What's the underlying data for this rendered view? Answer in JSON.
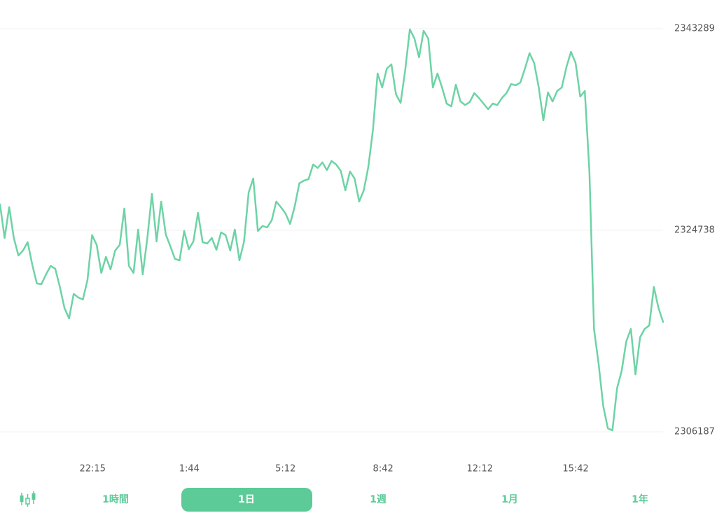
{
  "chart_data": {
    "type": "line",
    "x": [
      0,
      10,
      20,
      30,
      40,
      50,
      60,
      70,
      80,
      90,
      100,
      110,
      120,
      130,
      140,
      150,
      160,
      170,
      180,
      190,
      200,
      210,
      220,
      230,
      240,
      250,
      260,
      270,
      280,
      290,
      300,
      310,
      320,
      330,
      340,
      350,
      360,
      370,
      380,
      390,
      400,
      410,
      420,
      430,
      440,
      450,
      460,
      470,
      480,
      490,
      500,
      510,
      520,
      530,
      540,
      550,
      560,
      570,
      580,
      590,
      600,
      610,
      620,
      630,
      640,
      650,
      660,
      670,
      680,
      690,
      700,
      710,
      720,
      730,
      740,
      750,
      760,
      770,
      780,
      790,
      800,
      810,
      820,
      830,
      840,
      850,
      860,
      870,
      880,
      890,
      900,
      910,
      920,
      930,
      940,
      950,
      960,
      970,
      980,
      990,
      1000,
      1010,
      1020,
      1030,
      1040,
      1050,
      1060,
      1070,
      1080,
      1090,
      1100,
      1110,
      1120,
      1130,
      1140,
      1150,
      1160,
      1170,
      1180,
      1190,
      1200,
      1210,
      1220,
      1230,
      1240,
      1250,
      1260,
      1270,
      1280,
      1290,
      1300,
      1310,
      1320,
      1330,
      1340,
      1350,
      1360,
      1370,
      1380,
      1390,
      1400,
      1410,
      1420,
      1430,
      1440
    ],
    "series": [
      {
        "color": "#6dd3a5",
        "values": [
          2327121,
          2324030,
          2326864,
          2324030,
          2322419,
          2322870,
          2323643,
          2321582,
          2319843,
          2319778,
          2320680,
          2321453,
          2321195,
          2319521,
          2317588,
          2316622,
          2318876,
          2318554,
          2318361,
          2320165,
          2324287,
          2323385,
          2320809,
          2322290,
          2321131,
          2322870,
          2323385,
          2326735,
          2321453,
          2320809,
          2324802,
          2320680,
          2324030,
          2328088,
          2323707,
          2327379,
          2324352,
          2323257,
          2322097,
          2321968,
          2324674,
          2322999,
          2323707,
          2326348,
          2323643,
          2323514,
          2324030,
          2322934,
          2324545,
          2324287,
          2322870,
          2324802,
          2321968,
          2323707,
          2328216,
          2329505,
          2324674,
          2325125,
          2324996,
          2325640,
          2327379,
          2326864,
          2326284,
          2325318,
          2326928,
          2329054,
          2329311,
          2329440,
          2330793,
          2330471,
          2330986,
          2330278,
          2331115,
          2330793,
          2330213,
          2328410,
          2330149,
          2329505,
          2327379,
          2328410,
          2330600,
          2334014,
          2339167,
          2337878,
          2339617,
          2340004,
          2337234,
          2336461,
          2339489,
          2343225,
          2342387,
          2340648,
          2343096,
          2342387,
          2337878,
          2339167,
          2337878,
          2336397,
          2336139,
          2338136,
          2336590,
          2336268,
          2336526,
          2337363,
          2336912,
          2336397,
          2335882,
          2336397,
          2336268,
          2336912,
          2337363,
          2338200,
          2338072,
          2338329,
          2339617,
          2341035,
          2340133,
          2337878,
          2334851,
          2337427,
          2336590,
          2337556,
          2337878,
          2339746,
          2341163,
          2340133,
          2337041,
          2337556,
          2330149,
          2315656,
          2312435,
          2308570,
          2306509,
          2306316,
          2310181,
          2311791,
          2314496,
          2315656,
          2311469,
          2314883,
          2315656,
          2315978,
          2319521,
          2317588,
          2316300
        ]
      }
    ],
    "xlim": [
      0,
      1440
    ],
    "xticks": [
      {
        "value": 201,
        "label": "22:15"
      },
      {
        "value": 411,
        "label": "1:44"
      },
      {
        "value": 620,
        "label": "5:12"
      },
      {
        "value": 832,
        "label": "8:42"
      },
      {
        "value": 1042,
        "label": "12:12"
      },
      {
        "value": 1250,
        "label": "15:42"
      }
    ],
    "ylim": [
      2306187,
      2343289
    ],
    "yticks": [
      2343289,
      2324738,
      2306187
    ],
    "grid": true
  },
  "tabs": [
    "1時間",
    "1日",
    "1週",
    "1月",
    "1年"
  ]
}
